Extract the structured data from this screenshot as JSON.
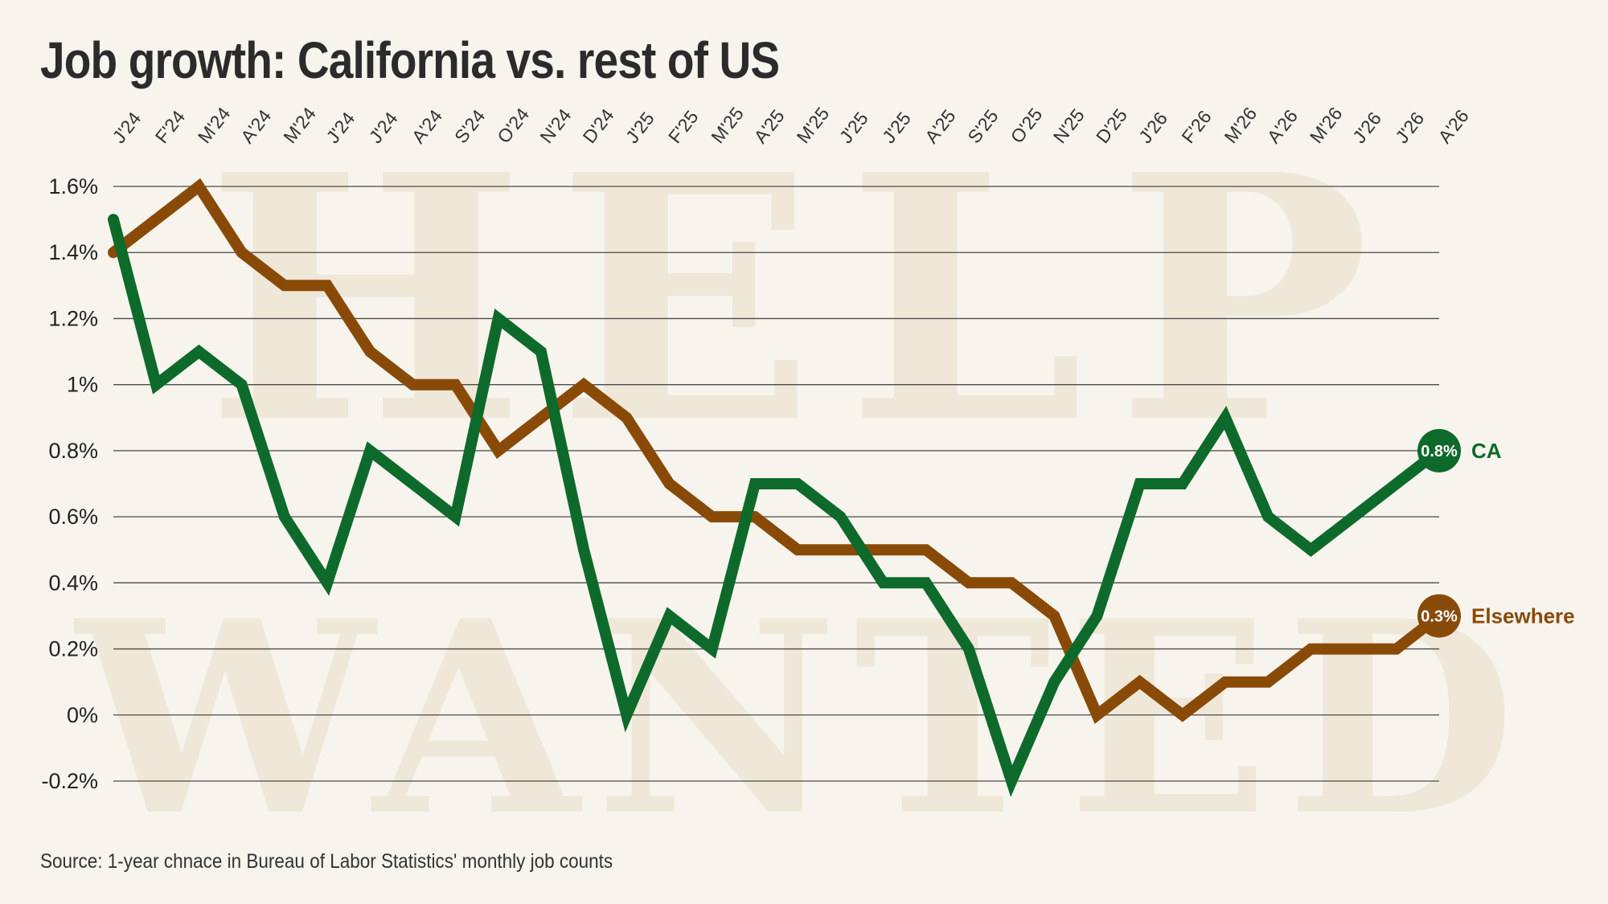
{
  "title": "Job growth: California vs. rest of US",
  "source": "Source: 1-year chnace in Bureau of Labor Statistics' monthly job counts",
  "watermark": [
    "HELP",
    "WANTED"
  ],
  "colors": {
    "background": "#f7f4ee",
    "watermark": "#efe7d8",
    "grid": "#4a4a4a",
    "ca": "#0e6a2a",
    "elsewhere": "#8a4a07"
  },
  "chart_data": {
    "type": "line",
    "title": "Job growth: California vs. rest of US",
    "x": [
      "J'24",
      "F'24",
      "M'24",
      "A'24",
      "M'24",
      "J'24",
      "J'24",
      "A'24",
      "S'24",
      "O'24",
      "N'24",
      "D'24",
      "J'25",
      "F'25",
      "M'25",
      "A'25",
      "M'25",
      "J'25",
      "J'25",
      "A'25",
      "S'25",
      "O'25",
      "N'25",
      "D'25",
      "J'26",
      "F'26",
      "M'26",
      "A'26",
      "M'26",
      "J'26",
      "J'26",
      "A'26"
    ],
    "ylim": [
      -0.2,
      1.6
    ],
    "yticks": [
      -0.2,
      0,
      0.2,
      0.4,
      0.6,
      0.8,
      1,
      1.2,
      1.4,
      1.6
    ],
    "ytick_labels": [
      "-0.2%",
      "0%",
      "0.2%",
      "0.4%",
      "0.6%",
      "0.8%",
      "1%",
      "1.2%",
      "1.4%",
      "1.6%"
    ],
    "grid": "horizontal",
    "series": [
      {
        "name": "CA",
        "end_label": "0.8%",
        "color": "#0e6a2a",
        "values": [
          1.5,
          1.0,
          1.1,
          1.0,
          0.6,
          0.4,
          0.8,
          0.7,
          0.6,
          1.2,
          1.1,
          0.5,
          0.0,
          0.3,
          0.2,
          0.7,
          0.7,
          0.6,
          0.4,
          0.4,
          0.2,
          -0.2,
          0.1,
          0.3,
          0.7,
          0.7,
          0.9,
          0.6,
          0.5,
          0.6,
          0.7,
          0.8
        ]
      },
      {
        "name": "Elsewhere",
        "end_label": "0.3%",
        "color": "#8a4a07",
        "values": [
          1.4,
          1.5,
          1.6,
          1.4,
          1.3,
          1.3,
          1.1,
          1.0,
          1.0,
          0.8,
          0.9,
          1.0,
          0.9,
          0.7,
          0.6,
          0.6,
          0.5,
          0.5,
          0.5,
          0.5,
          0.4,
          0.4,
          0.3,
          0.0,
          0.1,
          0.0,
          0.1,
          0.1,
          0.2,
          0.2,
          0.2,
          0.3
        ]
      }
    ]
  }
}
